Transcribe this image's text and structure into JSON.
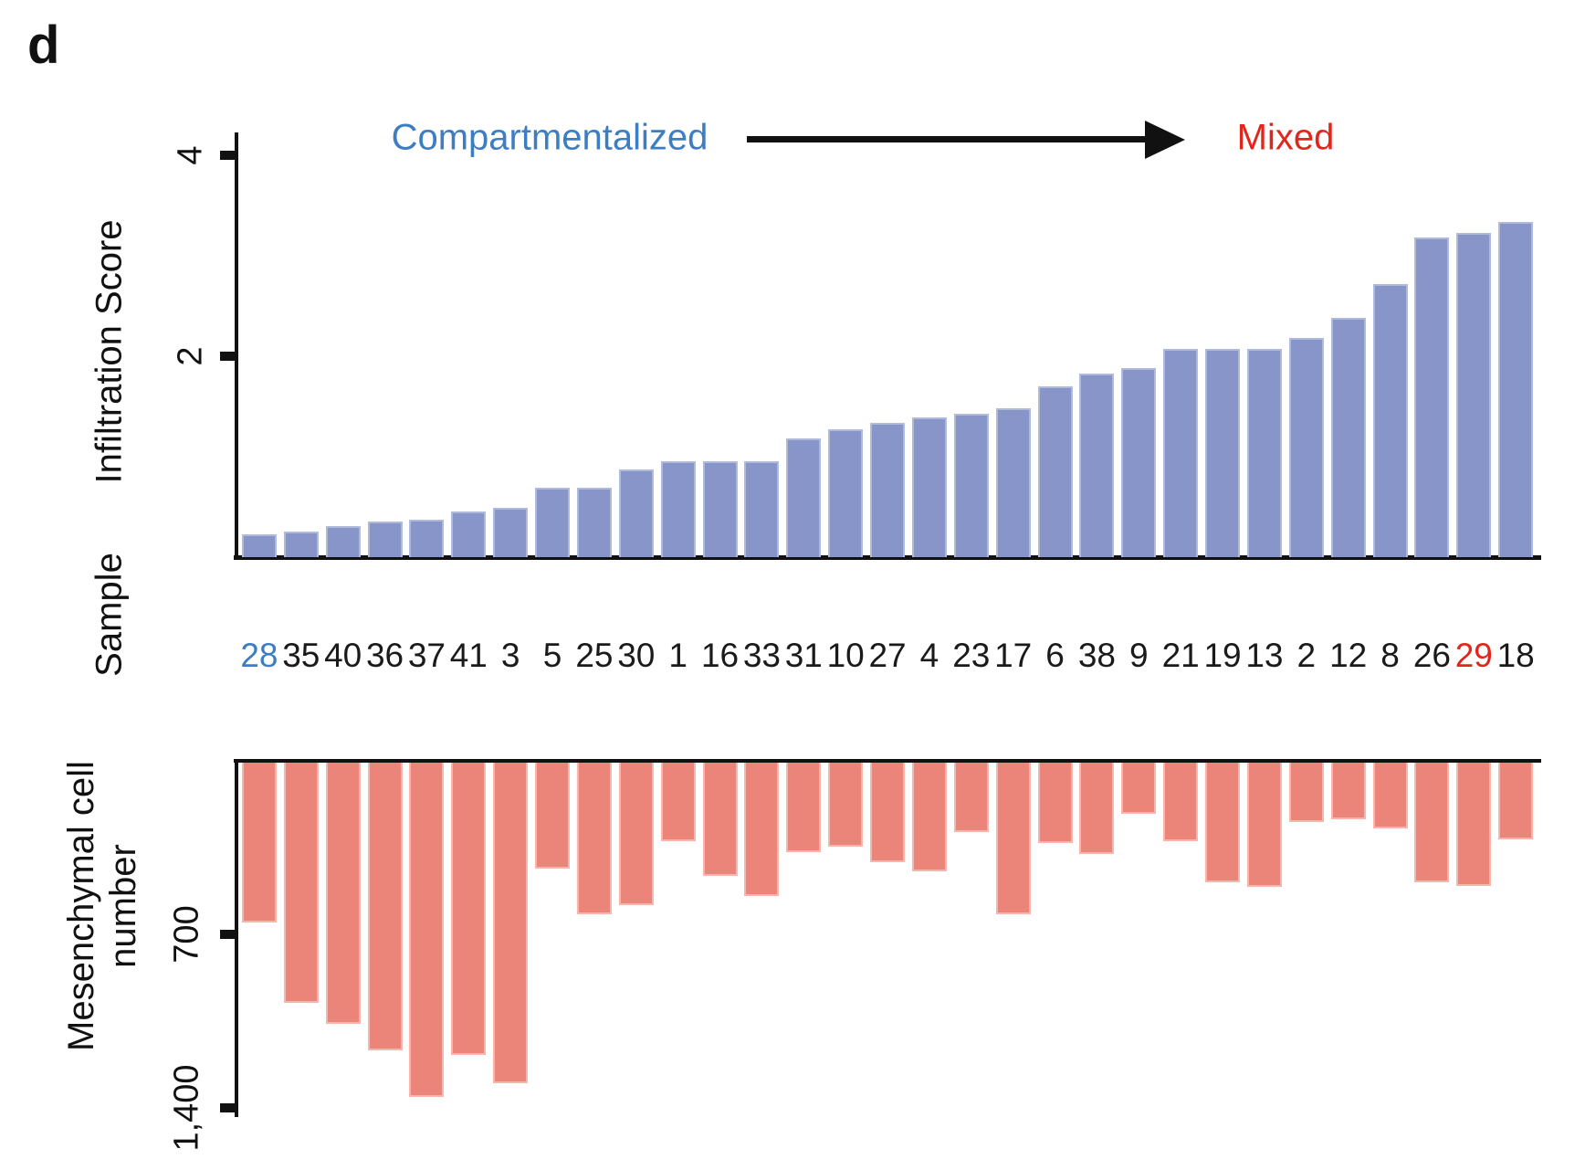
{
  "panel_label": "d",
  "sample_axis": {
    "label": "Sample",
    "default_color": "#1a1a1a",
    "highlight_colors": {
      "28": "#3D7EC3",
      "29": "#E3261D"
    }
  },
  "chart_data": [
    {
      "id": "infiltration_score",
      "type": "bar",
      "ylabel": "Infiltration Score",
      "ylim": [
        0,
        4
      ],
      "yticks": [
        4,
        2
      ],
      "ytick_labels": [
        "4",
        "2"
      ],
      "grid": false,
      "legend": "none",
      "bar_color": "#8795C8",
      "bar_edge_color": "#b0badd",
      "annotations": {
        "left_label": {
          "text": "Compartmentalized",
          "color": "#3D7EC3"
        },
        "right_label": {
          "text": "Mixed",
          "color": "#E3261D"
        },
        "arrow": {
          "direction": "right",
          "color": "#111111"
        }
      },
      "categories": [
        "28",
        "35",
        "40",
        "36",
        "37",
        "41",
        "3",
        "5",
        "25",
        "30",
        "1",
        "16",
        "33",
        "31",
        "10",
        "27",
        "4",
        "23",
        "17",
        "6",
        "38",
        "9",
        "21",
        "19",
        "13",
        "2",
        "12",
        "8",
        "26",
        "29",
        "18"
      ],
      "values": [
        0.23,
        0.25,
        0.31,
        0.35,
        0.37,
        0.45,
        0.49,
        0.69,
        0.69,
        0.87,
        0.95,
        0.95,
        0.95,
        1.18,
        1.27,
        1.34,
        1.39,
        1.43,
        1.48,
        1.7,
        1.83,
        1.88,
        2.07,
        2.07,
        2.07,
        2.18,
        2.38,
        2.72,
        3.18,
        3.23,
        3.34
      ]
    },
    {
      "id": "mesenchymal_cell_number",
      "type": "bar",
      "orientation": "inverted",
      "ylabel": "Mesenchymal cell number",
      "ylabel_lines": [
        "Mesenchymal cell",
        "number"
      ],
      "ylim": [
        0,
        1400
      ],
      "yticks": [
        700,
        1400
      ],
      "ytick_labels": [
        "700",
        "1,400"
      ],
      "grid": false,
      "legend": "none",
      "bar_color": "#EC8579",
      "bar_edge_color": "#f6b5ad",
      "categories": [
        "28",
        "35",
        "40",
        "36",
        "37",
        "41",
        "3",
        "5",
        "25",
        "30",
        "1",
        "16",
        "33",
        "31",
        "10",
        "27",
        "4",
        "23",
        "17",
        "6",
        "38",
        "9",
        "21",
        "19",
        "13",
        "2",
        "12",
        "8",
        "26",
        "29",
        "18"
      ],
      "values": [
        643,
        970,
        1052,
        1159,
        1347,
        1179,
        1292,
        426,
        610,
        573,
        316,
        457,
        538,
        360,
        339,
        400,
        440,
        280,
        612,
        323,
        370,
        205,
        315,
        481,
        500,
        240,
        230,
        266,
        481,
        496,
        309
      ]
    }
  ]
}
